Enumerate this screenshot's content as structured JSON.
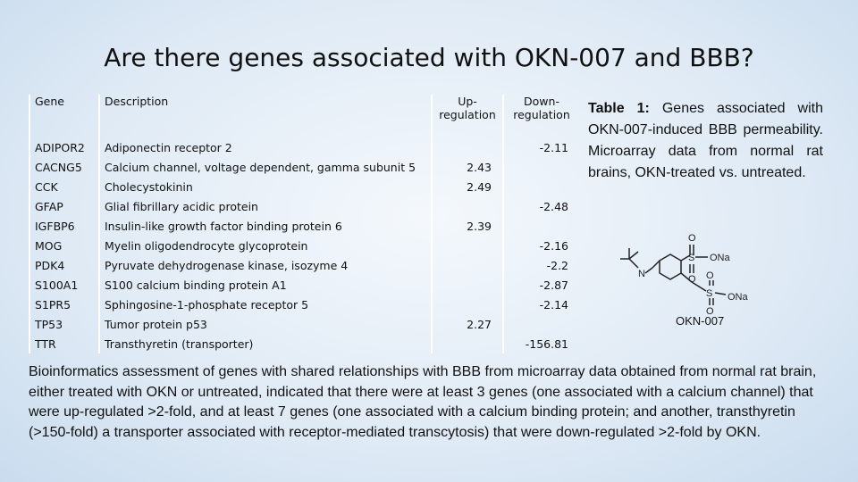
{
  "title": "Are there genes associated with OKN-007 and BBB?",
  "table": {
    "headers": {
      "gene": "Gene",
      "description": "Description",
      "up": "Up-regulation",
      "down": "Down-regulation"
    },
    "rows": [
      {
        "gene": "ADIPOR2",
        "description": "Adiponectin receptor 2",
        "down": -2.11
      },
      {
        "gene": "CACNG5",
        "description": "Calcium channel, voltage dependent, gamma subunit 5",
        "up": 2.43
      },
      {
        "gene": "CCK",
        "description": "Cholecystokinin",
        "up": 2.49
      },
      {
        "gene": "GFAP",
        "description": "Glial fibrillary acidic protein",
        "down": -2.48
      },
      {
        "gene": "IGFBP6",
        "description": "Insulin-like growth factor binding protein 6",
        "up": 2.39
      },
      {
        "gene": "MOG",
        "description": "Myelin oligodendrocyte glycoprotein",
        "down": -2.16
      },
      {
        "gene": "PDK4",
        "description": "Pyruvate dehydrogenase kinase, isozyme 4",
        "down": -2.2
      },
      {
        "gene": "S100A1",
        "description": "S100 calcium binding protein A1",
        "down": -2.87
      },
      {
        "gene": "S1PR5",
        "description": "Sphingosine-1-phosphate receptor 5",
        "down": -2.14
      },
      {
        "gene": "TP53",
        "description": "Tumor protein p53",
        "up": 2.27
      },
      {
        "gene": "TTR",
        "description": "Transthyretin (transporter)",
        "down": -156.81
      }
    ]
  },
  "caption": {
    "label": "Table 1:",
    "text": "Genes associated with OKN-007-induced BBB permeability. Microarray data from normal rat brains, OKN-treated vs. untreated."
  },
  "structure": {
    "name": "OKN-007",
    "atoms": {
      "o1": "O",
      "s1": "S",
      "ona1": "ONa",
      "o2": "O",
      "n": "N",
      "o3": "O",
      "o4": "O",
      "s2": "S",
      "ona2": "ONa"
    }
  },
  "body": "Bioinformatics assessment of genes with shared relationships with BBB from microarray data obtained from normal rat brain, either treated with OKN or untreated, indicated that there were at least 3 genes (one associated with a calcium channel) that were up-regulated >2-fold, and at least 7 genes (one associated with a calcium binding protein; and another, transthyretin (>150-fold) a transporter associated with receptor-mediated transcytosis) that were down-regulated >2-fold by OKN."
}
